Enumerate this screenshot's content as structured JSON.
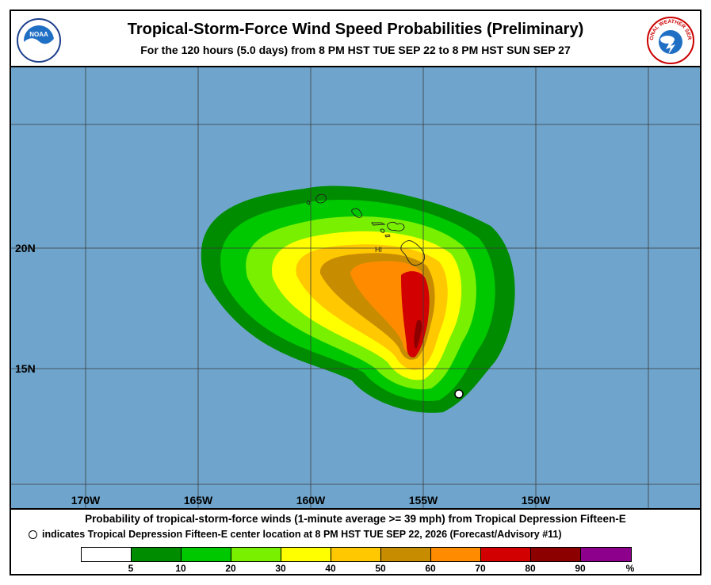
{
  "header": {
    "title": "Tropical-Storm-Force Wind Speed Probabilities (Preliminary)",
    "subtitle": "For the 120 hours (5.0 days) from 8 PM HST TUE SEP 22 to 8 PM HST SUN SEP 27",
    "left_logo": "noaa-logo",
    "right_logo": "national-weather-service-logo",
    "left_logo_text": "NOAA",
    "right_logo_text": "NATIONAL WEATHER SERVICE"
  },
  "map": {
    "ocean_color": "#6fa5cc",
    "longitude_labels": [
      "170W",
      "165W",
      "160W",
      "155W",
      "150W"
    ],
    "latitude_labels": [
      "20N",
      "15N"
    ],
    "place_label": "HI",
    "storm_center_marker": "open-circle"
  },
  "footer": {
    "line1": "Probability of tropical-storm-force winds (1-minute average >= 39 mph) from Tropical Depression Fifteen-E",
    "line2": "indicates Tropical Depression Fifteen-E center location at 8 PM HST TUE SEP 22, 2026 (Forecast/Advisory #11)"
  },
  "legend": {
    "colors": [
      "#ffffff",
      "#008c00",
      "#00c800",
      "#78f000",
      "#ffff00",
      "#ffc800",
      "#c88c00",
      "#ff8c00",
      "#d20000",
      "#8c0000",
      "#8c008c"
    ],
    "labels": [
      "5",
      "10",
      "20",
      "30",
      "40",
      "50",
      "60",
      "70",
      "80",
      "90",
      "%"
    ]
  }
}
